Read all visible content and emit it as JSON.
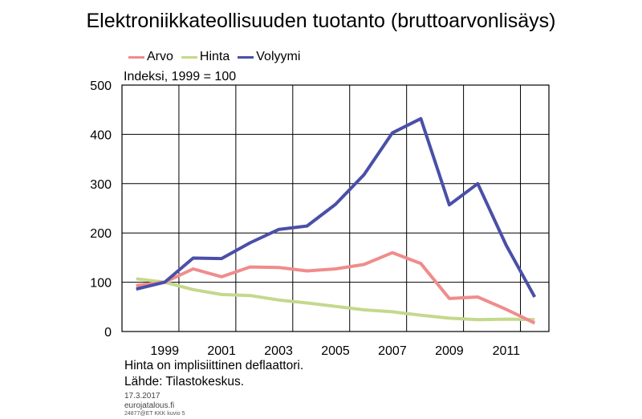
{
  "chart_data": {
    "type": "line",
    "title": "Elektroniikkateollisuuden tuotanto (bruttoarvonlisäys)",
    "ylabel": "Indeksi, 1999 = 100",
    "xlabel": "",
    "ylim": [
      0,
      500
    ],
    "yticks": [
      0,
      100,
      200,
      300,
      400,
      500
    ],
    "xticks": [
      "1999",
      "2001",
      "2003",
      "2005",
      "2007",
      "2009",
      "2011"
    ],
    "grid": true,
    "legend_position": "top-left",
    "x": [
      1998,
      1999,
      2000,
      2001,
      2002,
      2003,
      2004,
      2005,
      2006,
      2007,
      2008,
      2009,
      2010,
      2011,
      2012
    ],
    "series": [
      {
        "name": "Arvo",
        "color": "#f08c8c",
        "values": [
          93,
          100,
          127,
          111,
          131,
          130,
          123,
          127,
          136,
          160,
          138,
          67,
          70,
          45,
          17
        ]
      },
      {
        "name": "Hinta",
        "color": "#c3d98c",
        "values": [
          107,
          100,
          85,
          75,
          73,
          64,
          58,
          51,
          44,
          40,
          33,
          27,
          24,
          25,
          24
        ]
      },
      {
        "name": "Volyymi",
        "color": "#4a4fa8",
        "values": [
          86,
          100,
          149,
          148,
          180,
          207,
          214,
          258,
          318,
          403,
          432,
          257,
          300,
          175,
          70
        ]
      }
    ]
  },
  "notes": {
    "line1": "Hinta on implisiittinen deflaattori.",
    "line2": "Lähde: Tilastokeskus."
  },
  "footer": {
    "date": "17.3.2017",
    "site": "eurojatalous.fi",
    "code": "24877@ET KKK kuvio 5"
  }
}
